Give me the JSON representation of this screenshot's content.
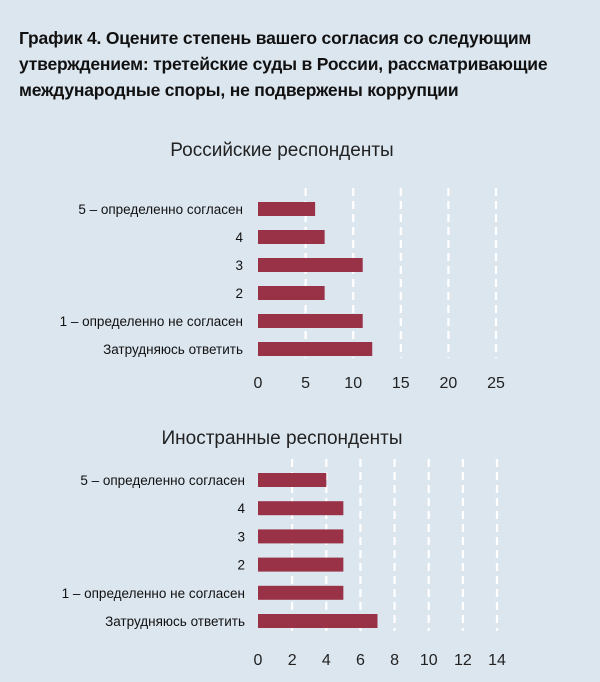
{
  "page_title": "График 4. Оцените степень вашего согласия со следующим утверждением: третейские суды в России, рассматривающие международные споры, не подвержены коррупции",
  "colors": {
    "background": "#dce6ef",
    "bar": "#993247",
    "grid": "#ffffff"
  },
  "chart_data": [
    {
      "type": "bar",
      "orientation": "horizontal",
      "title": "Российские респонденты",
      "categories": [
        "5 – определенно согласен",
        "4",
        "3",
        "2",
        "1 – определенно не согласен",
        "Затрудняюсь ответить"
      ],
      "values": [
        6,
        7,
        11,
        7,
        11,
        12
      ],
      "xlim": [
        0,
        25
      ],
      "xticks": [
        "0",
        "5",
        "10",
        "15",
        "20",
        "25"
      ],
      "xtick_values": [
        0,
        5,
        10,
        15,
        20,
        25
      ],
      "grid": true,
      "grid_style": "dashed white vertical"
    },
    {
      "type": "bar",
      "orientation": "horizontal",
      "title": "Иностранные респонденты",
      "categories": [
        "5 – определенно согласен",
        "4",
        "3",
        "2",
        "1 – определенно не согласен",
        "Затрудняюсь ответить"
      ],
      "values": [
        4,
        5,
        5,
        5,
        5,
        7
      ],
      "xlim": [
        0,
        14
      ],
      "xticks": [
        "0",
        "2",
        "4",
        "6",
        "8",
        "10",
        "12",
        "14"
      ],
      "xtick_values": [
        0,
        2,
        4,
        6,
        8,
        10,
        12,
        14
      ],
      "grid": true,
      "grid_style": "dashed white vertical"
    }
  ]
}
